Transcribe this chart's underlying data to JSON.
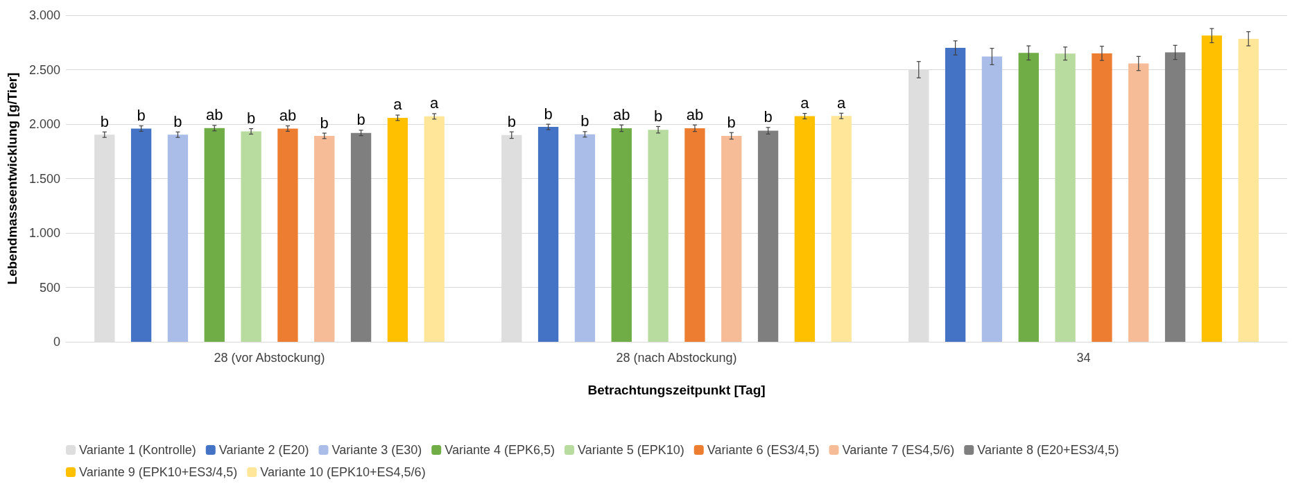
{
  "chart_data": {
    "type": "bar",
    "xlabel": "Betrachtungszeitpunkt [Tag]",
    "ylabel": "Lebendmasseentwicklung [g/Tier]",
    "categories": [
      "28 (vor Abstockung)",
      "28 (nach Abstockung)",
      "34"
    ],
    "ylim": [
      0,
      3000
    ],
    "yticks": [
      0,
      500,
      {
        "value": 1000,
        "label": "1.000"
      },
      {
        "value": 1500,
        "label": "1.500"
      },
      {
        "value": 2000,
        "label": "2.000"
      },
      {
        "value": 2500,
        "label": "2.500"
      },
      {
        "value": 3000,
        "label": "3.000"
      }
    ],
    "grid": "y",
    "legend": "bottom",
    "series": [
      {
        "name": "Variante 1 (Kontrolle)",
        "color": "#dedede",
        "values": [
          1903,
          1899,
          2500
        ],
        "errors": [
          25,
          30,
          75
        ],
        "value_labels": [
          "b",
          "b",
          null
        ]
      },
      {
        "name": "Variante 2 (E20)",
        "color": "#4472c4",
        "values": [
          1959,
          1974,
          2700
        ],
        "errors": [
          25,
          25,
          65
        ],
        "value_labels": [
          "b",
          "b",
          null
        ]
      },
      {
        "name": "Variante 3 (E30)",
        "color": "#a9bde8",
        "values": [
          1903,
          1906,
          2621
        ],
        "errors": [
          25,
          25,
          75
        ],
        "value_labels": [
          "b",
          "b",
          null
        ]
      },
      {
        "name": "Variante 4 (EPK6,5)",
        "color": "#70ad47",
        "values": [
          1963,
          1962,
          2654
        ],
        "errors": [
          25,
          30,
          65
        ],
        "value_labels": [
          "ab",
          "ab",
          null
        ]
      },
      {
        "name": "Variante 5 (EPK10)",
        "color": "#b8dba0",
        "values": [
          1933,
          1948,
          2648
        ],
        "errors": [
          25,
          30,
          60
        ],
        "value_labels": [
          "b",
          "b",
          null
        ]
      },
      {
        "name": "Variante 6 (ES3/4,5)",
        "color": "#ed7d31",
        "values": [
          1959,
          1962,
          2650
        ],
        "errors": [
          25,
          30,
          65
        ],
        "value_labels": [
          "ab",
          "ab",
          null
        ]
      },
      {
        "name": "Variante 7 (ES4,5/6)",
        "color": "#f6bc98",
        "values": [
          1892,
          1892,
          2557
        ],
        "errors": [
          25,
          30,
          65
        ],
        "value_labels": [
          "b",
          "b",
          null
        ]
      },
      {
        "name": "Variante 8 (E20+ES3/4,5)",
        "color": "#7f7f7f",
        "values": [
          1919,
          1939,
          2659
        ],
        "errors": [
          25,
          30,
          65
        ],
        "value_labels": [
          "b",
          "b",
          null
        ]
      },
      {
        "name": "Variante 9 (EPK10+ES3/4,5)",
        "color": "#ffc000",
        "values": [
          2058,
          2073,
          2813
        ],
        "errors": [
          25,
          25,
          65
        ],
        "value_labels": [
          "a",
          "a",
          null
        ]
      },
      {
        "name": "Variante 10 (EPK10+ES4,5/6)",
        "color": "#ffe699",
        "values": [
          2071,
          2075,
          2784
        ],
        "errors": [
          25,
          25,
          65
        ],
        "value_labels": [
          "a",
          "a",
          null
        ]
      }
    ]
  }
}
